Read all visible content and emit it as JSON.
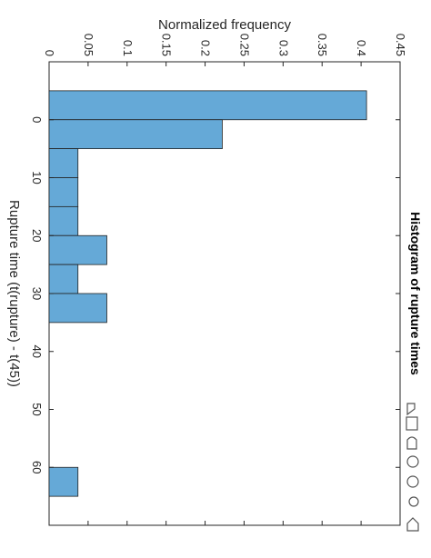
{
  "chart_data": {
    "type": "histogram",
    "title": "Histogram of rupture times",
    "x_label": "Rupture time (t(rupture) - t(45))",
    "y_label": "Normalized frequency",
    "bins": [
      -5,
      0,
      5,
      10,
      15,
      20,
      25,
      30,
      35,
      40,
      45,
      50,
      55,
      60,
      65
    ],
    "values": [
      0.407,
      0.222,
      0.037,
      0.037,
      0.037,
      0.074,
      0.037,
      0.074,
      0,
      0,
      0,
      0,
      0,
      0.037
    ],
    "color": "#65a9d7",
    "xlim": [
      -10,
      70
    ],
    "xticks": [
      0,
      10,
      20,
      30,
      40,
      50,
      60
    ],
    "ylim": [
      0,
      0.45
    ],
    "yticks": [
      0,
      0.05,
      0.1,
      0.15,
      0.2,
      0.25,
      0.3,
      0.35,
      0.4,
      0.45
    ],
    "grid": false
  }
}
